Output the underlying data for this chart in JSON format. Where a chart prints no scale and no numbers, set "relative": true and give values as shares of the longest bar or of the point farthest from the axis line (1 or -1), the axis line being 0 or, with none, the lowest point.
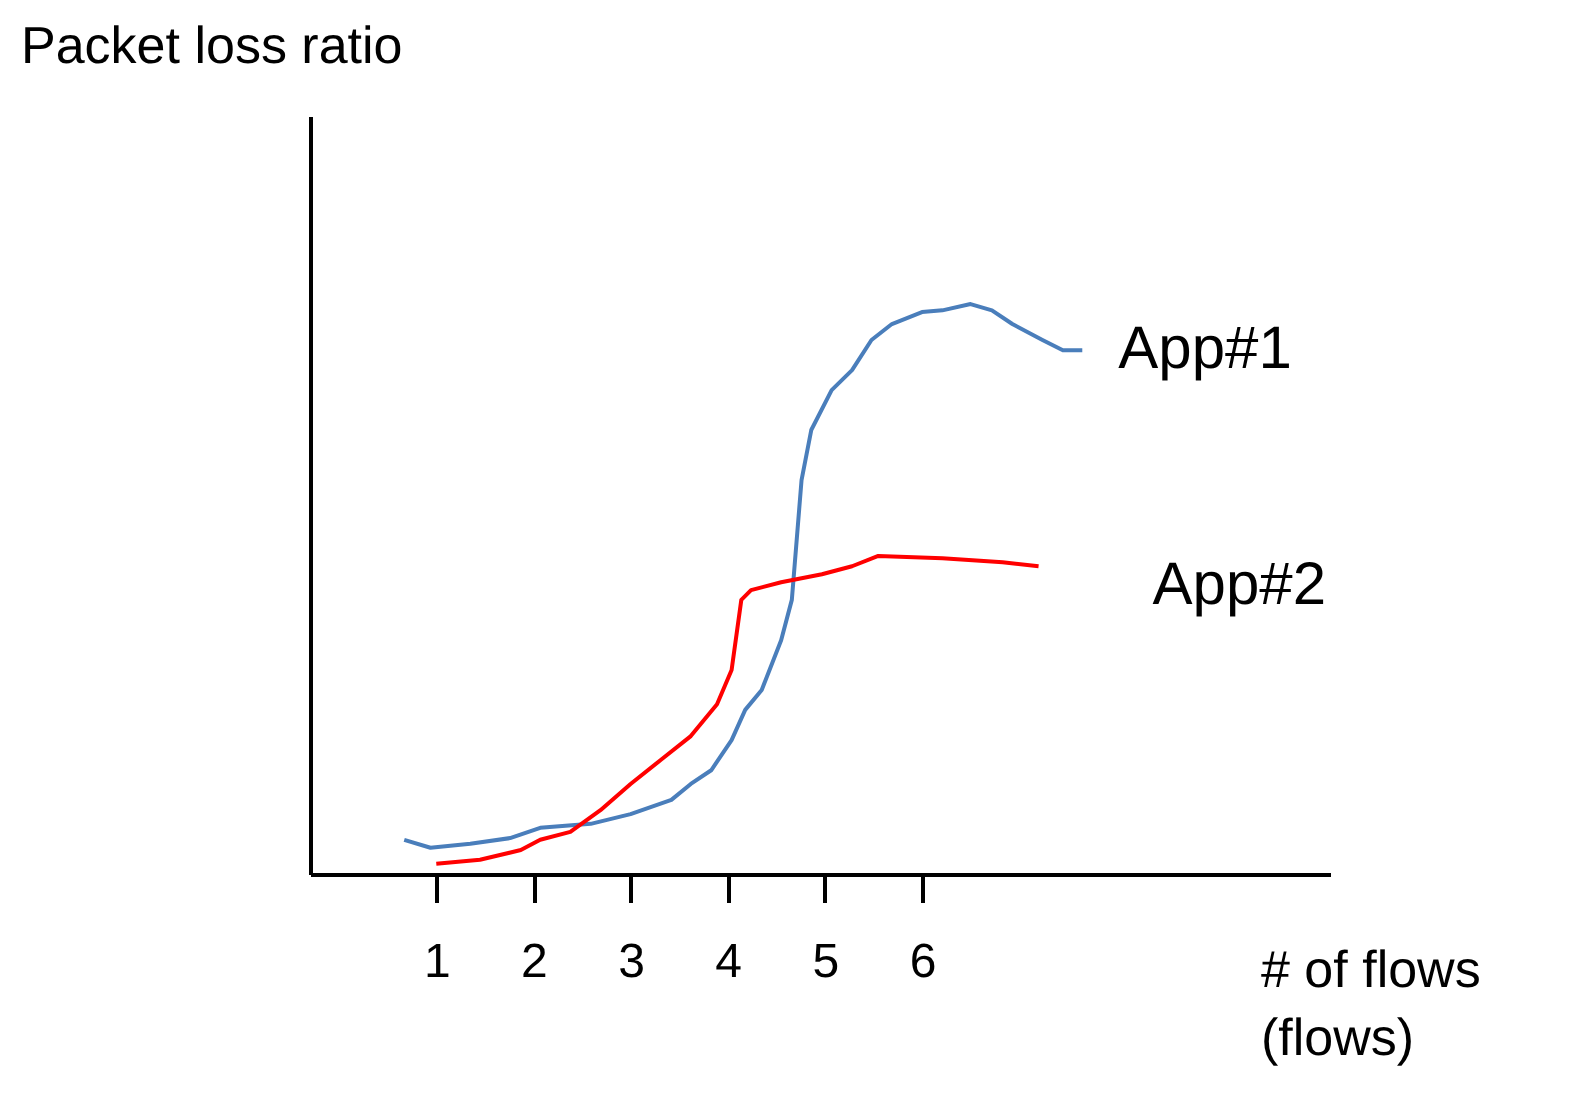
{
  "chart_data": {
    "type": "line",
    "relative": true,
    "xlabel": "# of flows\n(flows)",
    "ylabel": "Packet loss ratio",
    "xlim": [
      -0.3,
      10.2
    ],
    "xticks": [
      1,
      2,
      3,
      4,
      5,
      6
    ],
    "grid": false,
    "marker": "none",
    "line_style": "solid",
    "series": [
      {
        "name": "App#1",
        "color": "#4a7ebb",
        "x": [
          0.67,
          0.94,
          1.35,
          1.76,
          2.07,
          2.59,
          3.0,
          3.42,
          3.62,
          3.83,
          4.04,
          4.18,
          4.35,
          4.55,
          4.66,
          4.76,
          4.86,
          5.07,
          5.28,
          5.48,
          5.69,
          6.0,
          6.21,
          6.5,
          6.72,
          6.93,
          7.24,
          7.45,
          7.65
        ],
        "values": [
          0.06,
          0.046,
          0.053,
          0.063,
          0.081,
          0.088,
          0.105,
          0.13,
          0.158,
          0.182,
          0.235,
          0.288,
          0.323,
          0.41,
          0.481,
          0.691,
          0.779,
          0.849,
          0.884,
          0.937,
          0.965,
          0.986,
          0.989,
          1,
          0.989,
          0.965,
          0.937,
          0.919,
          0.919
        ]
      },
      {
        "name": "App#2",
        "color": "#ff0000",
        "x": [
          1.0,
          1.45,
          1.87,
          2.07,
          2.38,
          2.69,
          3.0,
          3.31,
          3.62,
          3.89,
          4.04,
          4.14,
          4.24,
          4.55,
          4.97,
          5.28,
          5.55,
          6.21,
          6.83,
          7.2
        ],
        "values": [
          0.018,
          0.025,
          0.042,
          0.06,
          0.074,
          0.112,
          0.158,
          0.2,
          0.242,
          0.298,
          0.358,
          0.481,
          0.498,
          0.512,
          0.526,
          0.54,
          0.558,
          0.554,
          0.547,
          0.54
        ]
      }
    ]
  }
}
